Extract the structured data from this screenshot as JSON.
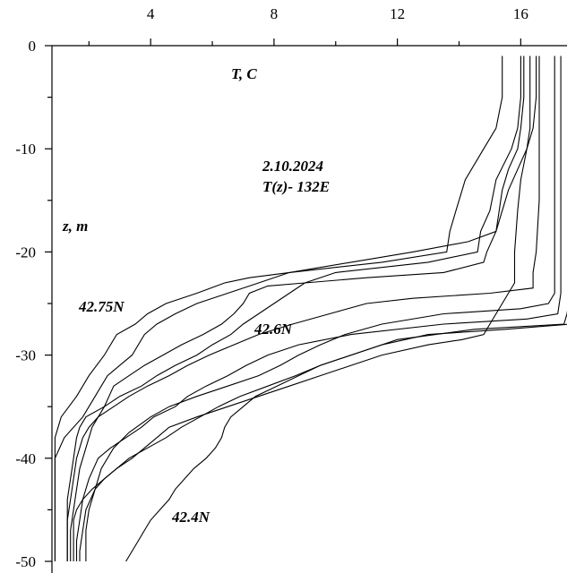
{
  "chart_data": {
    "type": "line",
    "title": "",
    "xlabel": "T, C",
    "ylabel": "z, m",
    "x_axis_position": "top",
    "xlim": [
      0.8,
      17.5
    ],
    "ylim": [
      -50,
      0
    ],
    "x_ticks": [
      4,
      8,
      12,
      16
    ],
    "y_ticks": [
      0,
      -10,
      -20,
      -30,
      -40,
      -50
    ],
    "x_tick_labels": [
      "4",
      "8",
      "12",
      "16"
    ],
    "y_tick_labels": [
      "0",
      "-10",
      "-20",
      "-30",
      "-40",
      "-50"
    ],
    "grid": false,
    "annotations": {
      "date": "2.10.2024",
      "section": "T(z)- 132E",
      "station_north": "42.75N",
      "station_mid": "42.6N",
      "station_south": "42.4N"
    },
    "series": [
      {
        "values": [
          [
            15.4,
            -1
          ],
          [
            15.4,
            -5
          ],
          [
            15.2,
            -8
          ],
          [
            14.8,
            -10
          ],
          [
            14.2,
            -13
          ],
          [
            13.9,
            -16
          ],
          [
            13.7,
            -18
          ],
          [
            13.6,
            -20
          ],
          [
            11.5,
            -21
          ],
          [
            8.5,
            -22
          ],
          [
            7.5,
            -23
          ],
          [
            6.5,
            -24
          ],
          [
            5.5,
            -25
          ],
          [
            4.8,
            -26
          ],
          [
            4.2,
            -27
          ],
          [
            3.8,
            -28
          ],
          [
            3.4,
            -30
          ],
          [
            3.0,
            -31
          ],
          [
            2.6,
            -32
          ],
          [
            2.2,
            -34
          ],
          [
            1.8,
            -36
          ],
          [
            1.2,
            -38
          ],
          [
            0.9,
            -40
          ],
          [
            0.9,
            -43
          ],
          [
            0.9,
            -46
          ],
          [
            0.9,
            -50
          ]
        ]
      },
      {
        "values": [
          [
            16.0,
            -1
          ],
          [
            16.0,
            -5
          ],
          [
            15.9,
            -8
          ],
          [
            15.7,
            -10
          ],
          [
            15.2,
            -13
          ],
          [
            15.0,
            -16
          ],
          [
            14.7,
            -18
          ],
          [
            14.6,
            -20
          ],
          [
            13.0,
            -21
          ],
          [
            10.0,
            -22
          ],
          [
            9.0,
            -23
          ],
          [
            8.5,
            -24
          ],
          [
            8.0,
            -25
          ],
          [
            7.5,
            -26
          ],
          [
            7.0,
            -27
          ],
          [
            6.6,
            -28
          ],
          [
            6.0,
            -29
          ],
          [
            5.5,
            -30
          ],
          [
            4.8,
            -31
          ],
          [
            4.2,
            -32
          ],
          [
            3.7,
            -33
          ],
          [
            3.0,
            -34
          ],
          [
            2.5,
            -35
          ],
          [
            1.9,
            -36
          ],
          [
            1.7,
            -37
          ],
          [
            1.6,
            -38
          ],
          [
            1.5,
            -40
          ],
          [
            1.4,
            -42
          ],
          [
            1.3,
            -44
          ],
          [
            1.3,
            -47
          ],
          [
            1.3,
            -50
          ]
        ]
      },
      {
        "values": [
          [
            16.1,
            -1
          ],
          [
            16.1,
            -5
          ],
          [
            16.0,
            -8
          ],
          [
            15.9,
            -10
          ],
          [
            15.6,
            -12
          ],
          [
            15.4,
            -14
          ],
          [
            15.3,
            -16
          ],
          [
            15.2,
            -18
          ],
          [
            14.9,
            -20
          ],
          [
            14.8,
            -21
          ],
          [
            13.5,
            -22
          ],
          [
            11.0,
            -22.5
          ],
          [
            9.0,
            -23
          ],
          [
            7.8,
            -23.3
          ],
          [
            7.2,
            -24
          ],
          [
            7.0,
            -25
          ],
          [
            6.7,
            -26
          ],
          [
            6.3,
            -27
          ],
          [
            5.7,
            -28
          ],
          [
            5.0,
            -29
          ],
          [
            4.4,
            -30
          ],
          [
            3.8,
            -31
          ],
          [
            3.3,
            -32
          ],
          [
            2.8,
            -33
          ],
          [
            2.5,
            -35
          ],
          [
            2.1,
            -37
          ],
          [
            1.9,
            -39
          ],
          [
            1.7,
            -41
          ],
          [
            1.6,
            -43
          ],
          [
            1.5,
            -45
          ],
          [
            1.4,
            -47
          ],
          [
            1.4,
            -50
          ]
        ]
      },
      {
        "values": [
          [
            16.3,
            -1
          ],
          [
            16.3,
            -5
          ],
          [
            16.3,
            -8
          ],
          [
            16.2,
            -10
          ],
          [
            15.9,
            -12
          ],
          [
            15.6,
            -14
          ],
          [
            15.4,
            -16
          ],
          [
            15.2,
            -18
          ],
          [
            14.3,
            -19
          ],
          [
            12.5,
            -20
          ],
          [
            10.5,
            -21
          ],
          [
            8.5,
            -22
          ],
          [
            7.2,
            -22.5
          ],
          [
            6.4,
            -23
          ],
          [
            5.5,
            -24
          ],
          [
            4.5,
            -25
          ],
          [
            3.9,
            -26
          ],
          [
            3.5,
            -27
          ],
          [
            2.9,
            -28
          ],
          [
            2.5,
            -30
          ],
          [
            2.0,
            -32
          ],
          [
            1.6,
            -34
          ],
          [
            1.1,
            -36
          ],
          [
            0.9,
            -38
          ],
          [
            0.9,
            -41
          ],
          [
            0.9,
            -44
          ],
          [
            0.9,
            -50
          ]
        ]
      },
      {
        "values": [
          [
            16.6,
            -1
          ],
          [
            16.6,
            -5
          ],
          [
            16.6,
            -10
          ],
          [
            16.6,
            -15
          ],
          [
            16.5,
            -20
          ],
          [
            16.4,
            -22
          ],
          [
            16.4,
            -23.5
          ],
          [
            15.0,
            -24
          ],
          [
            12.5,
            -24.5
          ],
          [
            11.0,
            -25
          ],
          [
            9.8,
            -26
          ],
          [
            8.6,
            -27
          ],
          [
            7.5,
            -28
          ],
          [
            6.7,
            -29
          ],
          [
            5.9,
            -30
          ],
          [
            5.2,
            -31
          ],
          [
            4.6,
            -32
          ],
          [
            3.9,
            -33
          ],
          [
            3.3,
            -34
          ],
          [
            2.8,
            -35
          ],
          [
            2.3,
            -36
          ],
          [
            2.0,
            -37
          ],
          [
            1.8,
            -38
          ],
          [
            1.6,
            -40
          ],
          [
            1.5,
            -42
          ],
          [
            1.4,
            -44
          ],
          [
            1.3,
            -46
          ],
          [
            1.3,
            -50
          ]
        ]
      },
      {
        "values": [
          [
            16.5,
            -1
          ],
          [
            16.5,
            -3
          ],
          [
            16.5,
            -5
          ],
          [
            16.4,
            -8
          ],
          [
            16.2,
            -10
          ],
          [
            16.0,
            -13
          ],
          [
            15.9,
            -16
          ],
          [
            15.8,
            -20
          ],
          [
            15.8,
            -23
          ],
          [
            15.6,
            -24
          ],
          [
            15.4,
            -25
          ],
          [
            15.2,
            -26
          ],
          [
            15.0,
            -27
          ],
          [
            14.8,
            -28
          ],
          [
            14.1,
            -28.5
          ],
          [
            13.0,
            -29
          ],
          [
            11.5,
            -30
          ],
          [
            10.5,
            -31
          ],
          [
            9.5,
            -32
          ],
          [
            8.5,
            -33
          ],
          [
            7.5,
            -34
          ],
          [
            6.5,
            -35
          ],
          [
            5.5,
            -36
          ],
          [
            4.6,
            -37
          ],
          [
            4.2,
            -38
          ],
          [
            3.8,
            -39
          ],
          [
            3.4,
            -40
          ],
          [
            2.9,
            -41
          ],
          [
            2.5,
            -42
          ],
          [
            2.2,
            -43
          ],
          [
            2.0,
            -45
          ],
          [
            1.9,
            -47
          ],
          [
            1.9,
            -50
          ]
        ]
      },
      {
        "values": [
          [
            17.1,
            -1
          ],
          [
            17.1,
            -5
          ],
          [
            17.1,
            -10
          ],
          [
            17.1,
            -15
          ],
          [
            17.1,
            -20
          ],
          [
            17.1,
            -24
          ],
          [
            16.9,
            -25
          ],
          [
            16.0,
            -25.5
          ],
          [
            13.5,
            -26
          ],
          [
            11.5,
            -27
          ],
          [
            10.3,
            -28
          ],
          [
            9.5,
            -29
          ],
          [
            8.8,
            -30
          ],
          [
            8.2,
            -31
          ],
          [
            7.5,
            -32
          ],
          [
            6.5,
            -33
          ],
          [
            5.5,
            -34
          ],
          [
            4.6,
            -35
          ],
          [
            4.0,
            -36
          ],
          [
            3.3,
            -37.5
          ],
          [
            2.8,
            -39
          ],
          [
            2.4,
            -41
          ],
          [
            2.2,
            -43
          ],
          [
            1.9,
            -45
          ],
          [
            1.8,
            -47
          ],
          [
            1.7,
            -49
          ],
          [
            1.7,
            -50
          ]
        ]
      },
      {
        "values": [
          [
            17.3,
            -1
          ],
          [
            17.3,
            -5
          ],
          [
            17.3,
            -10
          ],
          [
            17.3,
            -15
          ],
          [
            17.3,
            -20
          ],
          [
            17.3,
            -24
          ],
          [
            17.2,
            -26
          ],
          [
            16.2,
            -26.5
          ],
          [
            13.5,
            -27
          ],
          [
            10.5,
            -28
          ],
          [
            8.8,
            -29
          ],
          [
            7.8,
            -30
          ],
          [
            7.1,
            -31
          ],
          [
            6.5,
            -32
          ],
          [
            5.8,
            -33
          ],
          [
            5.2,
            -34
          ],
          [
            4.8,
            -35
          ],
          [
            4.1,
            -36
          ],
          [
            3.7,
            -37
          ],
          [
            3.2,
            -38
          ],
          [
            2.7,
            -39
          ],
          [
            2.3,
            -40
          ],
          [
            2.0,
            -42
          ],
          [
            1.8,
            -44
          ],
          [
            1.7,
            -46
          ],
          [
            1.6,
            -48
          ],
          [
            1.6,
            -50
          ]
        ]
      },
      {
        "values": [
          [
            17.6,
            -1
          ],
          [
            17.6,
            -5
          ],
          [
            17.6,
            -10
          ],
          [
            17.6,
            -15
          ],
          [
            17.6,
            -20
          ],
          [
            17.6,
            -24
          ],
          [
            17.5,
            -26
          ],
          [
            17.4,
            -27
          ],
          [
            14.5,
            -27.5
          ],
          [
            12.0,
            -28.5
          ],
          [
            10.5,
            -30
          ],
          [
            9.5,
            -31
          ],
          [
            8.7,
            -32
          ],
          [
            7.8,
            -33
          ],
          [
            6.9,
            -34
          ],
          [
            6.2,
            -35
          ],
          [
            5.6,
            -36
          ],
          [
            5.0,
            -37
          ],
          [
            4.5,
            -38
          ],
          [
            3.9,
            -39
          ],
          [
            3.3,
            -40
          ],
          [
            2.9,
            -41
          ],
          [
            2.5,
            -42
          ],
          [
            2.1,
            -43
          ],
          [
            1.8,
            -44
          ],
          [
            1.6,
            -45
          ],
          [
            1.5,
            -46
          ],
          [
            1.5,
            -50
          ]
        ]
      },
      {
        "values": [
          [
            17.8,
            -1
          ],
          [
            17.8,
            -5
          ],
          [
            17.8,
            -10
          ],
          [
            17.8,
            -15
          ],
          [
            17.8,
            -20
          ],
          [
            17.8,
            -24
          ],
          [
            17.7,
            -26
          ],
          [
            17.6,
            -27
          ],
          [
            15.5,
            -27.5
          ],
          [
            13.0,
            -28
          ],
          [
            11.5,
            -29
          ],
          [
            10.5,
            -30
          ],
          [
            9.5,
            -31
          ],
          [
            8.8,
            -32
          ],
          [
            8.1,
            -33
          ],
          [
            7.4,
            -34
          ],
          [
            7.0,
            -35
          ],
          [
            6.6,
            -36
          ],
          [
            6.4,
            -37
          ],
          [
            6.3,
            -38
          ],
          [
            6.1,
            -39
          ],
          [
            5.8,
            -40
          ],
          [
            5.4,
            -41
          ],
          [
            5.1,
            -42
          ],
          [
            4.8,
            -43
          ],
          [
            4.6,
            -44
          ],
          [
            4.3,
            -45
          ],
          [
            4.0,
            -46
          ],
          [
            3.8,
            -47
          ],
          [
            3.6,
            -48
          ],
          [
            3.4,
            -49
          ],
          [
            3.2,
            -50
          ]
        ]
      }
    ]
  }
}
